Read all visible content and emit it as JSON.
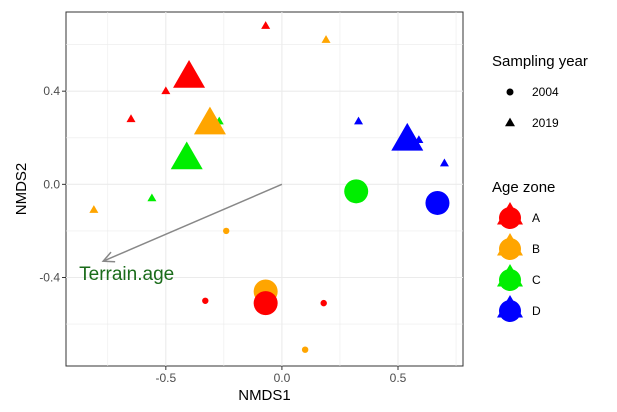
{
  "chart_data": {
    "type": "scatter",
    "xlabel": "NMDS1",
    "ylabel": "NMDS2",
    "xlim": [
      -0.93,
      0.78
    ],
    "ylim": [
      -0.78,
      0.74
    ],
    "xticks": [
      -0.5,
      0.0,
      0.5
    ],
    "xtick_labels": [
      "-0.5",
      "0.0",
      "0.5"
    ],
    "yticks": [
      -0.4,
      0.0,
      0.4
    ],
    "ytick_labels": [
      "-0.4",
      "0.0",
      "0.4"
    ],
    "grid": true,
    "legend_position": "right",
    "legend": {
      "shape_title": "Sampling year",
      "shape_items": [
        {
          "label": "2004",
          "shape": "circle"
        },
        {
          "label": "2019",
          "shape": "triangle"
        }
      ],
      "color_title": "Age zone",
      "color_items": [
        {
          "label": "A",
          "color": "#ff0000"
        },
        {
          "label": "B",
          "color": "#ffa500"
        },
        {
          "label": "C",
          "color": "#00ee00"
        },
        {
          "label": "D",
          "color": "#0000ff"
        }
      ]
    },
    "points": [
      {
        "x": -0.07,
        "y": 0.68,
        "zone": "A",
        "year": "2019",
        "size": "small"
      },
      {
        "x": 0.19,
        "y": 0.62,
        "zone": "B",
        "year": "2019",
        "size": "small"
      },
      {
        "x": -0.5,
        "y": 0.4,
        "zone": "A",
        "year": "2019",
        "size": "small"
      },
      {
        "x": -0.65,
        "y": 0.28,
        "zone": "A",
        "year": "2019",
        "size": "small"
      },
      {
        "x": -0.27,
        "y": 0.27,
        "zone": "C",
        "year": "2019",
        "size": "small"
      },
      {
        "x": 0.33,
        "y": 0.27,
        "zone": "D",
        "year": "2019",
        "size": "small"
      },
      {
        "x": 0.59,
        "y": 0.19,
        "zone": "D",
        "year": "2019",
        "size": "small"
      },
      {
        "x": 0.7,
        "y": 0.09,
        "zone": "D",
        "year": "2019",
        "size": "small"
      },
      {
        "x": -0.56,
        "y": -0.06,
        "zone": "C",
        "year": "2019",
        "size": "small"
      },
      {
        "x": -0.81,
        "y": -0.11,
        "zone": "B",
        "year": "2019",
        "size": "small"
      },
      {
        "x": -0.24,
        "y": -0.2,
        "zone": "B",
        "year": "2004",
        "size": "small"
      },
      {
        "x": -0.33,
        "y": -0.5,
        "zone": "A",
        "year": "2004",
        "size": "small"
      },
      {
        "x": 0.18,
        "y": -0.51,
        "zone": "A",
        "year": "2004",
        "size": "small"
      },
      {
        "x": 0.1,
        "y": -0.71,
        "zone": "B",
        "year": "2004",
        "size": "small"
      },
      {
        "x": 0.34,
        "y": -0.02,
        "zone": "C",
        "year": "2004",
        "size": "small"
      },
      {
        "x": -0.4,
        "y": 0.46,
        "zone": "A",
        "year": "2019",
        "size": "large"
      },
      {
        "x": -0.31,
        "y": 0.26,
        "zone": "B",
        "year": "2019",
        "size": "large"
      },
      {
        "x": -0.41,
        "y": 0.11,
        "zone": "C",
        "year": "2019",
        "size": "large"
      },
      {
        "x": 0.54,
        "y": 0.19,
        "zone": "D",
        "year": "2019",
        "size": "large"
      },
      {
        "x": 0.32,
        "y": -0.03,
        "zone": "C",
        "year": "2004",
        "size": "large"
      },
      {
        "x": 0.67,
        "y": -0.08,
        "zone": "D",
        "year": "2004",
        "size": "large"
      },
      {
        "x": -0.07,
        "y": -0.46,
        "zone": "B",
        "year": "2004",
        "size": "large"
      },
      {
        "x": -0.07,
        "y": -0.51,
        "zone": "A",
        "year": "2004",
        "size": "large"
      }
    ],
    "vector": {
      "label": "Terrain.age",
      "x0": 0.0,
      "y0": 0.0,
      "x1": -0.77,
      "y1": -0.33,
      "color": "#888888",
      "label_color": "#1a6b1a"
    }
  }
}
